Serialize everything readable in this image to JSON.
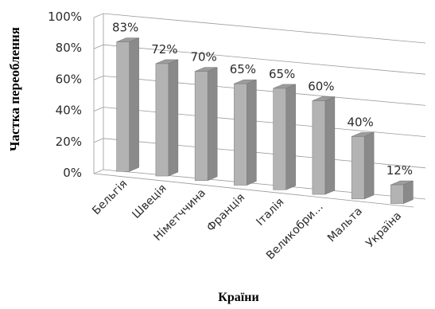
{
  "chart_data": {
    "type": "bar",
    "categories": [
      "Бельгія",
      "Швеція",
      "Німетччина",
      "Франція",
      "Італія",
      "Великобри…",
      "Мальта",
      "Україна"
    ],
    "values": [
      83,
      72,
      70,
      65,
      65,
      60,
      40,
      12
    ],
    "data_labels": [
      "83%",
      "72%",
      "70%",
      "65%",
      "65%",
      "60%",
      "40%",
      "12%"
    ],
    "y_ticks": [
      "0%",
      "20%",
      "40%",
      "60%",
      "80%",
      "100%"
    ],
    "ylim": [
      0,
      100
    ],
    "xlabel": "Країни",
    "ylabel": "Частка переоблення",
    "grid": true,
    "legend": "none",
    "colors": {
      "bar_front": "#b3b3b3",
      "bar_side": "#8a8a8a",
      "bar_top": "#9c9c9c",
      "grid": "#9a9a9a"
    }
  }
}
